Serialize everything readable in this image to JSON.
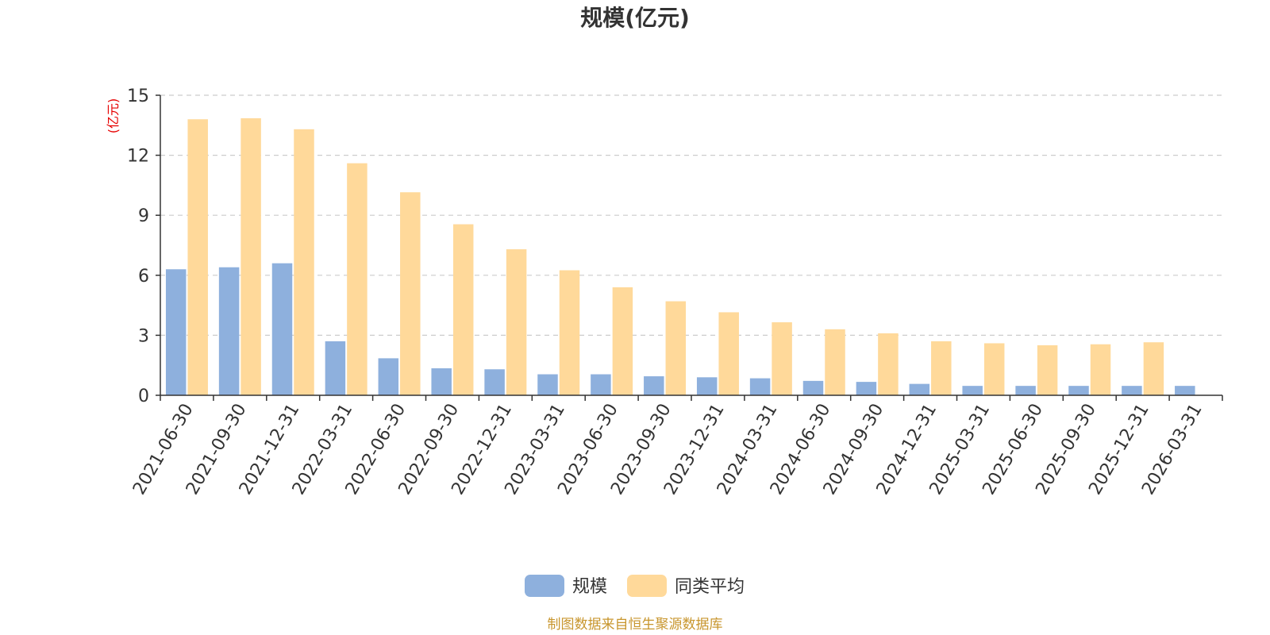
{
  "chart_data": {
    "type": "bar",
    "title": "规模(亿元)",
    "ylabel": "(亿元)",
    "xlabel": "",
    "ylim": [
      0,
      15
    ],
    "yticks": [
      0,
      3,
      6,
      9,
      12,
      15
    ],
    "grid": true,
    "legend_position": "bottom-center",
    "categories": [
      "2021-06-30",
      "2021-09-30",
      "2021-12-31",
      "2022-03-31",
      "2022-06-30",
      "2022-09-30",
      "2022-12-31",
      "2023-03-31",
      "2023-06-30",
      "2023-09-30",
      "2023-12-31",
      "2024-03-31",
      "2024-06-30",
      "2024-09-30",
      "2024-12-31",
      "2025-03-31",
      "2025-06-30",
      "2025-09-30",
      "2025-12-31",
      "2026-03-31"
    ],
    "series": [
      {
        "name": "规模",
        "color": "#8eb0dd",
        "values": [
          6.3,
          6.4,
          6.6,
          2.7,
          1.85,
          1.35,
          1.3,
          1.05,
          1.05,
          0.95,
          0.9,
          0.85,
          0.72,
          0.67,
          0.57,
          0.47,
          0.47,
          0.47,
          0.47,
          0.47
        ]
      },
      {
        "name": "同类平均",
        "color": "#ffd99a",
        "values": [
          13.8,
          13.85,
          13.3,
          11.6,
          10.15,
          8.55,
          7.3,
          6.25,
          5.4,
          4.7,
          4.15,
          3.65,
          3.3,
          3.1,
          2.7,
          2.6,
          2.5,
          2.55,
          2.65,
          null
        ]
      }
    ]
  },
  "source": {
    "text": "制图数据来自恒生聚源数据库",
    "color": "#c8962e"
  }
}
